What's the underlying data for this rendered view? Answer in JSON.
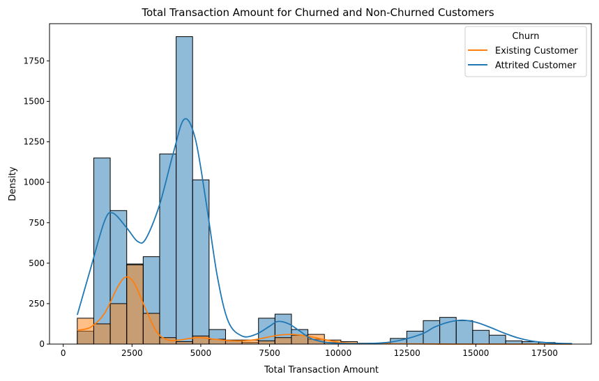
{
  "chart_data": {
    "type": "histogram",
    "title": "Total Transaction Amount for Churned and Non-Churned Customers",
    "xlabel": "Total Transaction Amount",
    "ylabel": "Density",
    "xlim": [
      -500,
      19200
    ],
    "ylim": [
      0,
      1980
    ],
    "xticks": [
      0,
      2500,
      5000,
      7500,
      10000,
      12500,
      15000,
      17500
    ],
    "xtick_labels": [
      "0",
      "2500",
      "5000",
      "7500",
      "10000",
      "12500",
      "15000",
      "17500"
    ],
    "yticks": [
      0,
      250,
      500,
      750,
      1000,
      1250,
      1500,
      1750
    ],
    "ytick_labels": [
      "0",
      "250",
      "500",
      "750",
      "1000",
      "1250",
      "1500",
      "1750"
    ],
    "grid": false,
    "legend": {
      "title": "Churn",
      "placement": "top-right",
      "entries": [
        {
          "label": "Existing Customer",
          "color": "#ff7f0e"
        },
        {
          "label": "Attrited Customer",
          "color": "#1f77b4"
        }
      ]
    },
    "bins": {
      "start": 510,
      "width": 599,
      "count": 30
    },
    "series": [
      {
        "name": "Attrited Customer",
        "color": "#1f77b4",
        "bar_fill_opacity": 0.5,
        "counts": [
          80,
          1150,
          825,
          495,
          540,
          1175,
          1900,
          1015,
          90,
          20,
          10,
          160,
          185,
          90,
          30,
          10,
          5,
          5,
          5,
          35,
          80,
          145,
          165,
          145,
          85,
          55,
          20,
          15,
          10,
          0
        ],
        "kde_x": [
          510,
          1000,
          1500,
          1800,
          2300,
          2700,
          3000,
          3500,
          4000,
          4400,
          4800,
          5200,
          5600,
          6000,
          6500,
          7000,
          7500,
          7800,
          8200,
          8600,
          9000,
          9500,
          10000,
          11000,
          12000,
          13000,
          13500,
          14000,
          14500,
          15000,
          15500,
          16000,
          16500,
          17000,
          17500,
          18000,
          18500
        ],
        "kde_y": [
          180,
          470,
          760,
          810,
          720,
          635,
          650,
          860,
          1180,
          1390,
          1270,
          870,
          420,
          140,
          50,
          60,
          110,
          140,
          125,
          80,
          35,
          12,
          5,
          3,
          15,
          60,
          105,
          135,
          148,
          135,
          105,
          70,
          40,
          20,
          10,
          5,
          3
        ]
      },
      {
        "name": "Existing Customer",
        "color": "#ff7f0e",
        "bar_fill_opacity": 0.5,
        "counts": [
          160,
          125,
          250,
          490,
          190,
          40,
          15,
          50,
          30,
          25,
          25,
          20,
          40,
          55,
          60,
          25,
          15,
          5,
          0,
          0,
          0,
          0,
          0,
          0,
          0,
          0,
          0,
          0,
          0,
          0
        ],
        "kde_x": [
          510,
          1000,
          1500,
          2000,
          2300,
          2600,
          3000,
          3400,
          3800,
          4200,
          4600,
          5000,
          5500,
          6000,
          6500,
          7000,
          7500,
          8000,
          8500,
          9000,
          9500,
          10000,
          10500,
          11000,
          12000,
          13000,
          14000,
          15000,
          16000,
          17000,
          18500
        ],
        "kde_y": [
          85,
          105,
          190,
          360,
          415,
          370,
          215,
          75,
          25,
          25,
          35,
          40,
          30,
          22,
          20,
          28,
          45,
          58,
          58,
          45,
          28,
          12,
          5,
          3,
          2,
          1,
          0,
          0,
          0,
          0,
          0
        ]
      }
    ]
  }
}
